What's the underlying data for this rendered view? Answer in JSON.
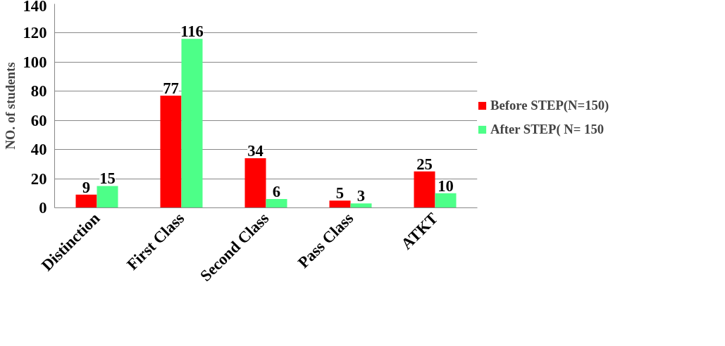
{
  "chart_data": {
    "type": "bar",
    "ylabel": "NO. of students",
    "categories": [
      "Distinction",
      "First Class",
      "Second Class",
      "Pass Class",
      "ATKT"
    ],
    "series": [
      {
        "name": "Before STEP(N=150)",
        "color": "#ff0000",
        "values": [
          9,
          77,
          34,
          5,
          25
        ]
      },
      {
        "name": "After STEP( N= 150",
        "color": "#4dff88",
        "values": [
          15,
          116,
          6,
          3,
          10
        ]
      }
    ],
    "ylim": [
      0,
      140
    ],
    "yticks": [
      0,
      20,
      40,
      60,
      80,
      100,
      120,
      140
    ],
    "grid": "y",
    "legend": "right",
    "data_labels": true
  }
}
